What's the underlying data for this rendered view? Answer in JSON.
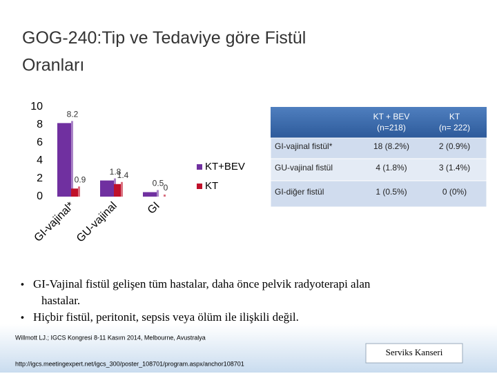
{
  "title": "GOG-240:Tip ve Tedaviye göre Fistül Oranları",
  "chart_data": {
    "type": "bar",
    "categories": [
      "GI-vajinal*",
      "GU-vajinal",
      "GI"
    ],
    "series": [
      {
        "name": "KT+BEV",
        "color": "#7030a0",
        "values": [
          8.2,
          1.8,
          0.5
        ]
      },
      {
        "name": "KT",
        "color": "#c0102a",
        "values": [
          0.9,
          1.4,
          0
        ]
      }
    ],
    "ylim": [
      0,
      10
    ],
    "yticks": [
      0,
      2,
      4,
      6,
      8,
      10
    ],
    "legend": "right"
  },
  "table": {
    "header": [
      "KT + BEV (n=218)",
      "KT (n= 222)"
    ],
    "rows": [
      [
        "GI-vajinal fistül*",
        "18 (8.2%)",
        "2 (0.9%)"
      ],
      [
        "GU-vajinal fistül",
        "4 (1.8%)",
        "3 (1.4%)"
      ],
      [
        "GI-diğer fistül",
        "1 (0.5%)",
        "0 (0%)"
      ]
    ]
  },
  "bullets": [
    "GI-Vajinal fistül gelişen tüm hastalar, daha önce pelvik radyoterapi alan hastalar.",
    "Hiçbir  fistül, peritonit, sepsis veya ölüm ile ilişkili değil."
  ],
  "citation": [
    "Willmott LJ.; IGCS Kongresi 8-11 Kasım 2014, Melbourne, Avustralya",
    "http://igcs.meetingexpert.net/igcs_300/poster_108701/program.aspx/anchor108701"
  ],
  "footer_label": "Serviks Kanseri"
}
